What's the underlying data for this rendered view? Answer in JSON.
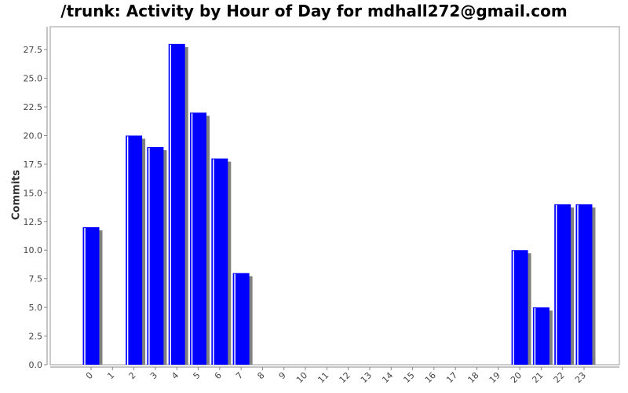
{
  "chart_data": {
    "type": "bar",
    "title": "/trunk: Activity by Hour of Day for mdhall272@gmail.com",
    "xlabel": "",
    "ylabel": "Commits",
    "categories": [
      "0",
      "1",
      "2",
      "3",
      "4",
      "5",
      "6",
      "7",
      "8",
      "9",
      "10",
      "11",
      "12",
      "13",
      "14",
      "15",
      "16",
      "17",
      "18",
      "19",
      "20",
      "21",
      "22",
      "23"
    ],
    "values": [
      12,
      0,
      20,
      19,
      28,
      22,
      18,
      8,
      0,
      0,
      0,
      0,
      0,
      0,
      0,
      0,
      0,
      0,
      0,
      0,
      10,
      5,
      14,
      14
    ],
    "yticks": [
      "0.0",
      "2.5",
      "5.0",
      "7.5",
      "10.0",
      "12.5",
      "15.0",
      "17.5",
      "20.0",
      "22.5",
      "25.0",
      "27.5"
    ],
    "ylim": [
      0,
      29.5
    ],
    "grid": false,
    "colors": {
      "bar": "#0000ff",
      "shadow": "#808080",
      "axis": "#888888"
    }
  }
}
